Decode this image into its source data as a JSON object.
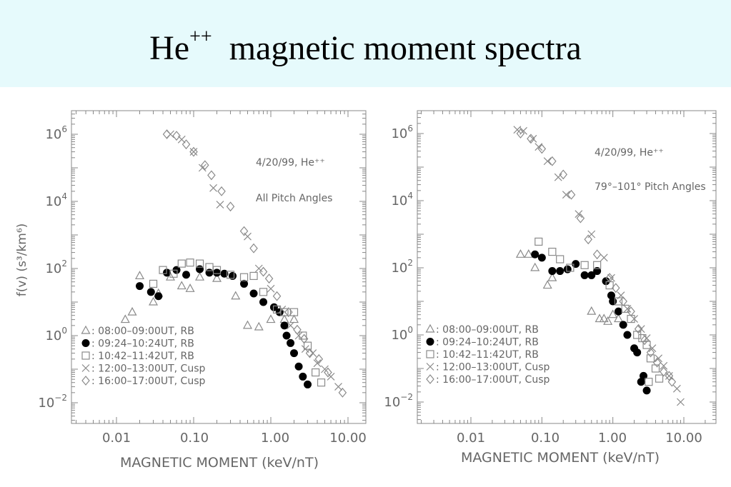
{
  "title": {
    "main": "He",
    "superscript": "++",
    "rest": "magnetic moment spectra"
  },
  "colors": {
    "title_background": "#e6fafc",
    "marker": "#8a8a8a",
    "filled_marker": "#000000",
    "frame": "#888888",
    "text": "#666666"
  },
  "chart_data": [
    {
      "type": "scatter",
      "scale": {
        "x": "log",
        "y": "log"
      },
      "xlim": [
        0.003,
        15
      ],
      "ylim": [
        0.0055,
        2200000
      ],
      "xlabel": "MAGNETIC MOMENT (keV/nT)",
      "ylabel": "f(v)  (s³/km⁶)",
      "xticks": [
        "0.01",
        "0.10",
        "1.00",
        "10.00"
      ],
      "yticks": [
        {
          "base": "10",
          "exp": "6"
        },
        {
          "base": "10",
          "exp": "4"
        },
        {
          "base": "10",
          "exp": "2"
        },
        {
          "base": "10",
          "exp": "0"
        },
        {
          "base": "10",
          "exp": "−2"
        }
      ],
      "annotations": [
        "4/20/99, He⁺⁺",
        "All Pitch Angles"
      ],
      "legend_position": "bottom-left",
      "series": [
        {
          "name": "08:00–09:00UT, RB",
          "marker": "triangle",
          "points": [
            [
              0.013,
              3
            ],
            [
              0.016,
              5
            ],
            [
              0.02,
              60
            ],
            [
              0.03,
              10
            ],
            [
              0.035,
              18
            ],
            [
              0.05,
              55
            ],
            [
              0.07,
              30
            ],
            [
              0.09,
              25
            ],
            [
              0.12,
              55
            ],
            [
              0.2,
              50
            ],
            [
              0.35,
              15
            ],
            [
              0.5,
              2
            ],
            [
              0.7,
              1.8
            ],
            [
              1.0,
              3
            ],
            [
              1.5,
              3
            ],
            [
              2.0,
              3
            ]
          ]
        },
        {
          "name": "09:24–10:24UT, RB",
          "marker": "circle",
          "points": [
            [
              0.02,
              30
            ],
            [
              0.028,
              20
            ],
            [
              0.035,
              15
            ],
            [
              0.045,
              75
            ],
            [
              0.06,
              90
            ],
            [
              0.08,
              65
            ],
            [
              0.12,
              95
            ],
            [
              0.16,
              75
            ],
            [
              0.2,
              75
            ],
            [
              0.25,
              70
            ],
            [
              0.32,
              60
            ],
            [
              0.45,
              35
            ],
            [
              0.6,
              18
            ],
            [
              0.8,
              10
            ],
            [
              1.1,
              7
            ],
            [
              1.3,
              5
            ],
            [
              1.5,
              2
            ],
            [
              1.6,
              1
            ],
            [
              1.8,
              0.6
            ],
            [
              2.0,
              0.3
            ],
            [
              2.3,
              0.12
            ],
            [
              2.6,
              0.06
            ],
            [
              3.0,
              0.035
            ]
          ]
        },
        {
          "name": "10:42–11:42UT, RB",
          "marker": "square",
          "points": [
            [
              0.03,
              35
            ],
            [
              0.04,
              90
            ],
            [
              0.055,
              70
            ],
            [
              0.07,
              140
            ],
            [
              0.09,
              150
            ],
            [
              0.12,
              140
            ],
            [
              0.16,
              110
            ],
            [
              0.2,
              90
            ],
            [
              0.3,
              65
            ],
            [
              0.45,
              55
            ],
            [
              0.6,
              60
            ],
            [
              0.8,
              20
            ],
            [
              1.2,
              6
            ],
            [
              1.5,
              5
            ],
            [
              2.0,
              5
            ],
            [
              2.6,
              1
            ],
            [
              3.0,
              0.5
            ],
            [
              3.8,
              0.08
            ],
            [
              4.5,
              0.04
            ]
          ]
        },
        {
          "name": "12:00–13:00UT, Cusp",
          "marker": "cross",
          "points": [
            [
              0.05,
              1000000
            ],
            [
              0.07,
              700000
            ],
            [
              0.1,
              300000
            ],
            [
              0.13,
              100000
            ],
            [
              0.18,
              25000
            ],
            [
              0.22,
              8000
            ],
            [
              0.5,
              900
            ],
            [
              0.7,
              100
            ],
            [
              1.0,
              25
            ],
            [
              1.4,
              6
            ],
            [
              1.8,
              2
            ],
            [
              2.3,
              1
            ],
            [
              2.8,
              0.4
            ],
            [
              3.5,
              0.3
            ],
            [
              4.0,
              0.15
            ],
            [
              5.0,
              0.1
            ],
            [
              6.0,
              0.06
            ],
            [
              7.5,
              0.03
            ]
          ]
        },
        {
          "name": "16:00–17:00UT, Cusp",
          "marker": "diamond",
          "points": [
            [
              0.045,
              1000000
            ],
            [
              0.06,
              900000
            ],
            [
              0.08,
              500000
            ],
            [
              0.1,
              300000
            ],
            [
              0.14,
              120000
            ],
            [
              0.17,
              60000
            ],
            [
              0.23,
              20000
            ],
            [
              0.3,
              7000
            ],
            [
              0.45,
              1300
            ],
            [
              0.6,
              400
            ],
            [
              0.8,
              80
            ],
            [
              0.95,
              50
            ],
            [
              1.2,
              15
            ],
            [
              1.7,
              5
            ],
            [
              2.2,
              1.5
            ],
            [
              2.7,
              0.8
            ],
            [
              3.2,
              0.3
            ],
            [
              4.2,
              0.2
            ],
            [
              5.5,
              0.08
            ],
            [
              8.5,
              0.02
            ]
          ]
        }
      ]
    },
    {
      "type": "scatter",
      "scale": {
        "x": "log",
        "y": "log"
      },
      "xlim": [
        0.003,
        15
      ],
      "ylim": [
        0.0055,
        2200000
      ],
      "xlabel": "MAGNETIC MOMENT (keV/nT)",
      "ylabel": "",
      "xticks": [
        "0.01",
        "0.10",
        "1.00",
        "10.00"
      ],
      "yticks": [
        {
          "base": "10",
          "exp": "6"
        },
        {
          "base": "10",
          "exp": "4"
        },
        {
          "base": "10",
          "exp": "2"
        },
        {
          "base": "10",
          "exp": "0"
        },
        {
          "base": "10",
          "exp": "−2"
        }
      ],
      "annotations": [
        "4/20/99, He⁺⁺",
        "79°–101° Pitch Angles"
      ],
      "legend_position": "bottom-left",
      "series": [
        {
          "name": "08:00–09:00UT, RB",
          "marker": "triangle",
          "points": [
            [
              0.05,
              250
            ],
            [
              0.065,
              250
            ],
            [
              0.08,
              100
            ],
            [
              0.12,
              30
            ],
            [
              0.14,
              50
            ],
            [
              0.5,
              5
            ],
            [
              0.65,
              3
            ],
            [
              0.75,
              3
            ],
            [
              0.85,
              2.5
            ],
            [
              1.0,
              4
            ],
            [
              1.2,
              3
            ]
          ]
        },
        {
          "name": "09:24–10:24UT, RB",
          "marker": "circle",
          "points": [
            [
              0.08,
              250
            ],
            [
              0.1,
              200
            ],
            [
              0.14,
              80
            ],
            [
              0.18,
              80
            ],
            [
              0.23,
              90
            ],
            [
              0.3,
              130
            ],
            [
              0.4,
              60
            ],
            [
              0.5,
              60
            ],
            [
              0.6,
              80
            ],
            [
              0.8,
              40
            ],
            [
              0.95,
              15
            ],
            [
              1.0,
              10
            ],
            [
              1.2,
              5
            ],
            [
              1.4,
              2
            ],
            [
              1.6,
              1
            ],
            [
              2.0,
              0.4
            ],
            [
              2.2,
              0.3
            ],
            [
              2.5,
              0.04
            ],
            [
              2.7,
              0.06
            ],
            [
              3.0,
              0.022
            ]
          ]
        },
        {
          "name": "10:42–11:42UT, RB",
          "marker": "square",
          "points": [
            [
              0.09,
              600
            ],
            [
              0.14,
              300
            ],
            [
              0.18,
              180
            ],
            [
              0.25,
              100
            ],
            [
              0.4,
              120
            ],
            [
              0.6,
              120
            ],
            [
              0.9,
              30
            ],
            [
              1.2,
              10
            ],
            [
              1.5,
              6
            ],
            [
              1.8,
              3
            ],
            [
              2.2,
              1
            ],
            [
              2.6,
              0.8
            ],
            [
              3.0,
              0.5
            ],
            [
              3.4,
              0.2
            ],
            [
              4.0,
              0.1
            ],
            [
              4.5,
              0.05
            ],
            [
              3.2,
              0.04
            ]
          ]
        },
        {
          "name": "12:00–13:00UT, Cusp",
          "marker": "cross",
          "points": [
            [
              0.045,
              1300000
            ],
            [
              0.055,
              1200000
            ],
            [
              0.075,
              700000
            ],
            [
              0.09,
              400000
            ],
            [
              0.12,
              150000
            ],
            [
              0.17,
              50000
            ],
            [
              0.22,
              15000
            ],
            [
              0.33,
              4000
            ],
            [
              0.5,
              1000
            ],
            [
              0.75,
              200
            ],
            [
              0.95,
              50
            ],
            [
              1.3,
              15
            ],
            [
              1.6,
              6
            ],
            [
              2.0,
              3
            ],
            [
              2.5,
              1.5
            ],
            [
              3.0,
              0.8
            ],
            [
              3.6,
              0.4
            ],
            [
              4.4,
              0.2
            ],
            [
              5.2,
              0.12
            ],
            [
              6.2,
              0.06
            ],
            [
              8.0,
              0.025
            ],
            [
              9.0,
              0.01
            ]
          ]
        },
        {
          "name": "16:00–17:00UT, Cusp",
          "marker": "diamond",
          "points": [
            [
              0.05,
              1000000
            ],
            [
              0.07,
              700000
            ],
            [
              0.1,
              350000
            ],
            [
              0.14,
              150000
            ],
            [
              0.2,
              60000
            ],
            [
              0.26,
              15000
            ],
            [
              0.35,
              3000
            ],
            [
              0.45,
              700
            ],
            [
              0.6,
              250
            ],
            [
              0.9,
              50
            ],
            [
              1.1,
              25
            ],
            [
              1.4,
              10
            ],
            [
              1.8,
              5
            ],
            [
              2.3,
              1.5
            ],
            [
              2.8,
              0.7
            ],
            [
              3.4,
              0.3
            ],
            [
              4.2,
              0.15
            ],
            [
              5.2,
              0.08
            ],
            [
              6.2,
              0.06
            ],
            [
              6.8,
              0.04
            ]
          ]
        }
      ]
    }
  ]
}
